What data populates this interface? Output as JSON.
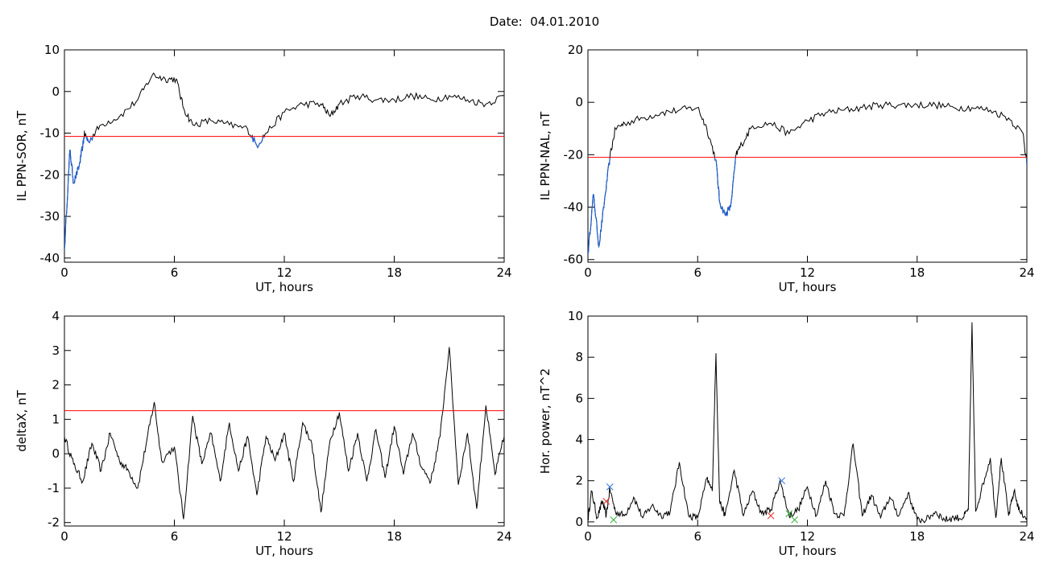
{
  "header": {
    "date_label": "Date:",
    "date_value": "04.01.2010"
  },
  "colors": {
    "trace": "#000000",
    "threshold": "#ff0000",
    "below": "#1f5fd0",
    "marker_green": "#2ea82e",
    "marker_red": "#e02020",
    "marker_blue": "#3070e0"
  },
  "chart_data": [
    {
      "type": "line",
      "ylabel": "IL PPN-SOR, nT",
      "xlabel": "UT, hours",
      "xlim": [
        0,
        24
      ],
      "ylim": [
        -41,
        10
      ],
      "xticks": [
        0,
        6,
        12,
        18,
        24
      ],
      "yticks": [
        10,
        0,
        -10,
        -20,
        -30,
        -40
      ],
      "threshold": -10.8,
      "series": [
        {
          "x": [
            0,
            0.3,
            0.5,
            0.8,
            1.0,
            1.1,
            1.3,
            2.0,
            3.0,
            4.0,
            4.8,
            5.5,
            6.1,
            6.5,
            7.0,
            8.0,
            9.0,
            10.0,
            10.5,
            11.0,
            12.0,
            13.0,
            14.0,
            14.5,
            15.0,
            16.0,
            17.0,
            18.0,
            19.0,
            20.0,
            21.0,
            22.0,
            23.0,
            24.0
          ],
          "y": [
            -38,
            -14,
            -22,
            -18,
            -13,
            -10,
            -12,
            -8,
            -6,
            -2,
            4,
            3,
            3,
            -4,
            -8,
            -7,
            -8,
            -9,
            -13,
            -10,
            -5,
            -3,
            -3,
            -6,
            -3,
            -1,
            -2,
            -2,
            -1,
            -2,
            -1,
            -2,
            -3,
            -1
          ]
        }
      ]
    },
    {
      "type": "line",
      "ylabel": "IL PPN-NAL, nT",
      "xlabel": "UT, hours",
      "xlim": [
        0,
        24
      ],
      "ylim": [
        -61,
        20
      ],
      "xticks": [
        0,
        6,
        12,
        18,
        24
      ],
      "yticks": [
        20,
        0,
        -20,
        -40,
        -60
      ],
      "threshold": -21,
      "series": [
        {
          "x": [
            0,
            0.3,
            0.6,
            0.9,
            1.2,
            1.5,
            2.0,
            3.0,
            4.0,
            5.0,
            6.0,
            6.5,
            7.0,
            7.2,
            7.5,
            7.8,
            8.1,
            8.4,
            9.0,
            10.0,
            11.0,
            12.0,
            13.0,
            14.0,
            15.0,
            16.0,
            17.0,
            18.0,
            19.0,
            20.0,
            21.0,
            22.0,
            23.0,
            23.8,
            24.0
          ],
          "y": [
            -58,
            -35,
            -55,
            -38,
            -21,
            -10,
            -8,
            -6,
            -4,
            -3,
            -2,
            -10,
            -22,
            -38,
            -43,
            -40,
            -20,
            -16,
            -9,
            -8,
            -12,
            -7,
            -4,
            -3,
            -2,
            -1,
            -1,
            -1,
            -1,
            -2,
            -2,
            -3,
            -6,
            -12,
            -24
          ]
        }
      ]
    },
    {
      "type": "line",
      "ylabel": "deltaX, nT",
      "xlabel": "UT, hours",
      "xlim": [
        0,
        24
      ],
      "ylim": [
        -2.1,
        4
      ],
      "xticks": [
        0,
        6,
        12,
        18,
        24
      ],
      "yticks": [
        4,
        3,
        2,
        1,
        0,
        -1,
        -2
      ],
      "threshold": 1.25,
      "series": [
        {
          "x": [
            0,
            0.5,
            1.0,
            1.5,
            2.0,
            2.5,
            3.0,
            3.5,
            4.0,
            4.5,
            4.9,
            5.3,
            6.0,
            6.5,
            7.0,
            7.5,
            8.0,
            8.5,
            9.0,
            9.5,
            10.0,
            10.5,
            11.0,
            11.5,
            12.0,
            12.5,
            13.0,
            13.5,
            14.0,
            14.5,
            15.0,
            15.5,
            16.0,
            16.5,
            17.0,
            17.5,
            18.0,
            18.5,
            19.0,
            19.5,
            20.0,
            20.5,
            21.0,
            21.5,
            22.0,
            22.5,
            23.0,
            23.5,
            24.0
          ],
          "y": [
            0.5,
            -0.3,
            -0.8,
            0.3,
            -0.5,
            0.6,
            -0.2,
            -0.5,
            -1.0,
            0.4,
            1.5,
            -0.2,
            0.2,
            -1.9,
            1.1,
            -0.3,
            0.6,
            -0.8,
            0.9,
            -0.5,
            0.5,
            -1.2,
            0.5,
            -0.2,
            0.6,
            -0.8,
            0.9,
            0.3,
            -1.7,
            0.4,
            1.2,
            -0.5,
            0.6,
            -0.8,
            0.7,
            -0.7,
            0.8,
            -0.6,
            0.6,
            -0.4,
            -0.8,
            0.5,
            3.1,
            -0.9,
            0.6,
            -1.6,
            1.4,
            -0.6,
            0.5
          ]
        }
      ]
    },
    {
      "type": "line",
      "ylabel": "Hor. power, nT^2",
      "xlabel": "UT, hours",
      "xlim": [
        0,
        24
      ],
      "ylim": [
        -0.2,
        10
      ],
      "xticks": [
        0,
        6,
        12,
        18,
        24
      ],
      "yticks": [
        10,
        8,
        6,
        4,
        2,
        0
      ],
      "series": [
        {
          "x": [
            0,
            0.2,
            0.5,
            0.8,
            1.0,
            1.2,
            1.5,
            2.0,
            2.5,
            3.0,
            3.5,
            4.0,
            4.5,
            5.0,
            5.5,
            6.0,
            6.5,
            6.8,
            7.0,
            7.2,
            7.5,
            8.0,
            8.5,
            9.0,
            9.5,
            10.0,
            10.5,
            11.0,
            11.5,
            12.0,
            12.5,
            13.0,
            13.5,
            14.0,
            14.5,
            15.0,
            15.5,
            16.0,
            16.5,
            17.0,
            17.5,
            18.0,
            18.5,
            19.0,
            19.5,
            20.0,
            20.5,
            20.8,
            21.0,
            21.2,
            21.5,
            22.0,
            22.3,
            22.6,
            23.0,
            23.3,
            23.6,
            24.0
          ],
          "y": [
            0.1,
            1.5,
            0.2,
            1.0,
            0.3,
            1.6,
            0.5,
            0.3,
            1.2,
            0.2,
            0.8,
            0.3,
            0.5,
            2.9,
            0.3,
            0.2,
            2.1,
            1.5,
            8.2,
            1.0,
            0.3,
            2.5,
            0.3,
            1.5,
            0.4,
            0.6,
            2.0,
            0.3,
            0.6,
            1.7,
            0.3,
            2.0,
            0.4,
            0.3,
            3.8,
            0.3,
            1.3,
            0.2,
            1.2,
            0.3,
            1.4,
            0.1,
            0.1,
            0.5,
            0.1,
            0.2,
            0.2,
            0.6,
            9.7,
            0.5,
            1.5,
            3.1,
            0.2,
            3.1,
            0.3,
            1.5,
            0.5,
            0.2
          ]
        }
      ],
      "markers": [
        {
          "x": 1.0,
          "y": 1.0,
          "color": "marker_red"
        },
        {
          "x": 1.2,
          "y": 1.7,
          "color": "marker_blue"
        },
        {
          "x": 1.4,
          "y": 0.1,
          "color": "marker_green"
        },
        {
          "x": 10.0,
          "y": 0.3,
          "color": "marker_red"
        },
        {
          "x": 10.6,
          "y": 2.0,
          "color": "marker_blue"
        },
        {
          "x": 11.0,
          "y": 0.4,
          "color": "marker_green"
        },
        {
          "x": 11.3,
          "y": 0.1,
          "color": "marker_green"
        }
      ]
    }
  ]
}
